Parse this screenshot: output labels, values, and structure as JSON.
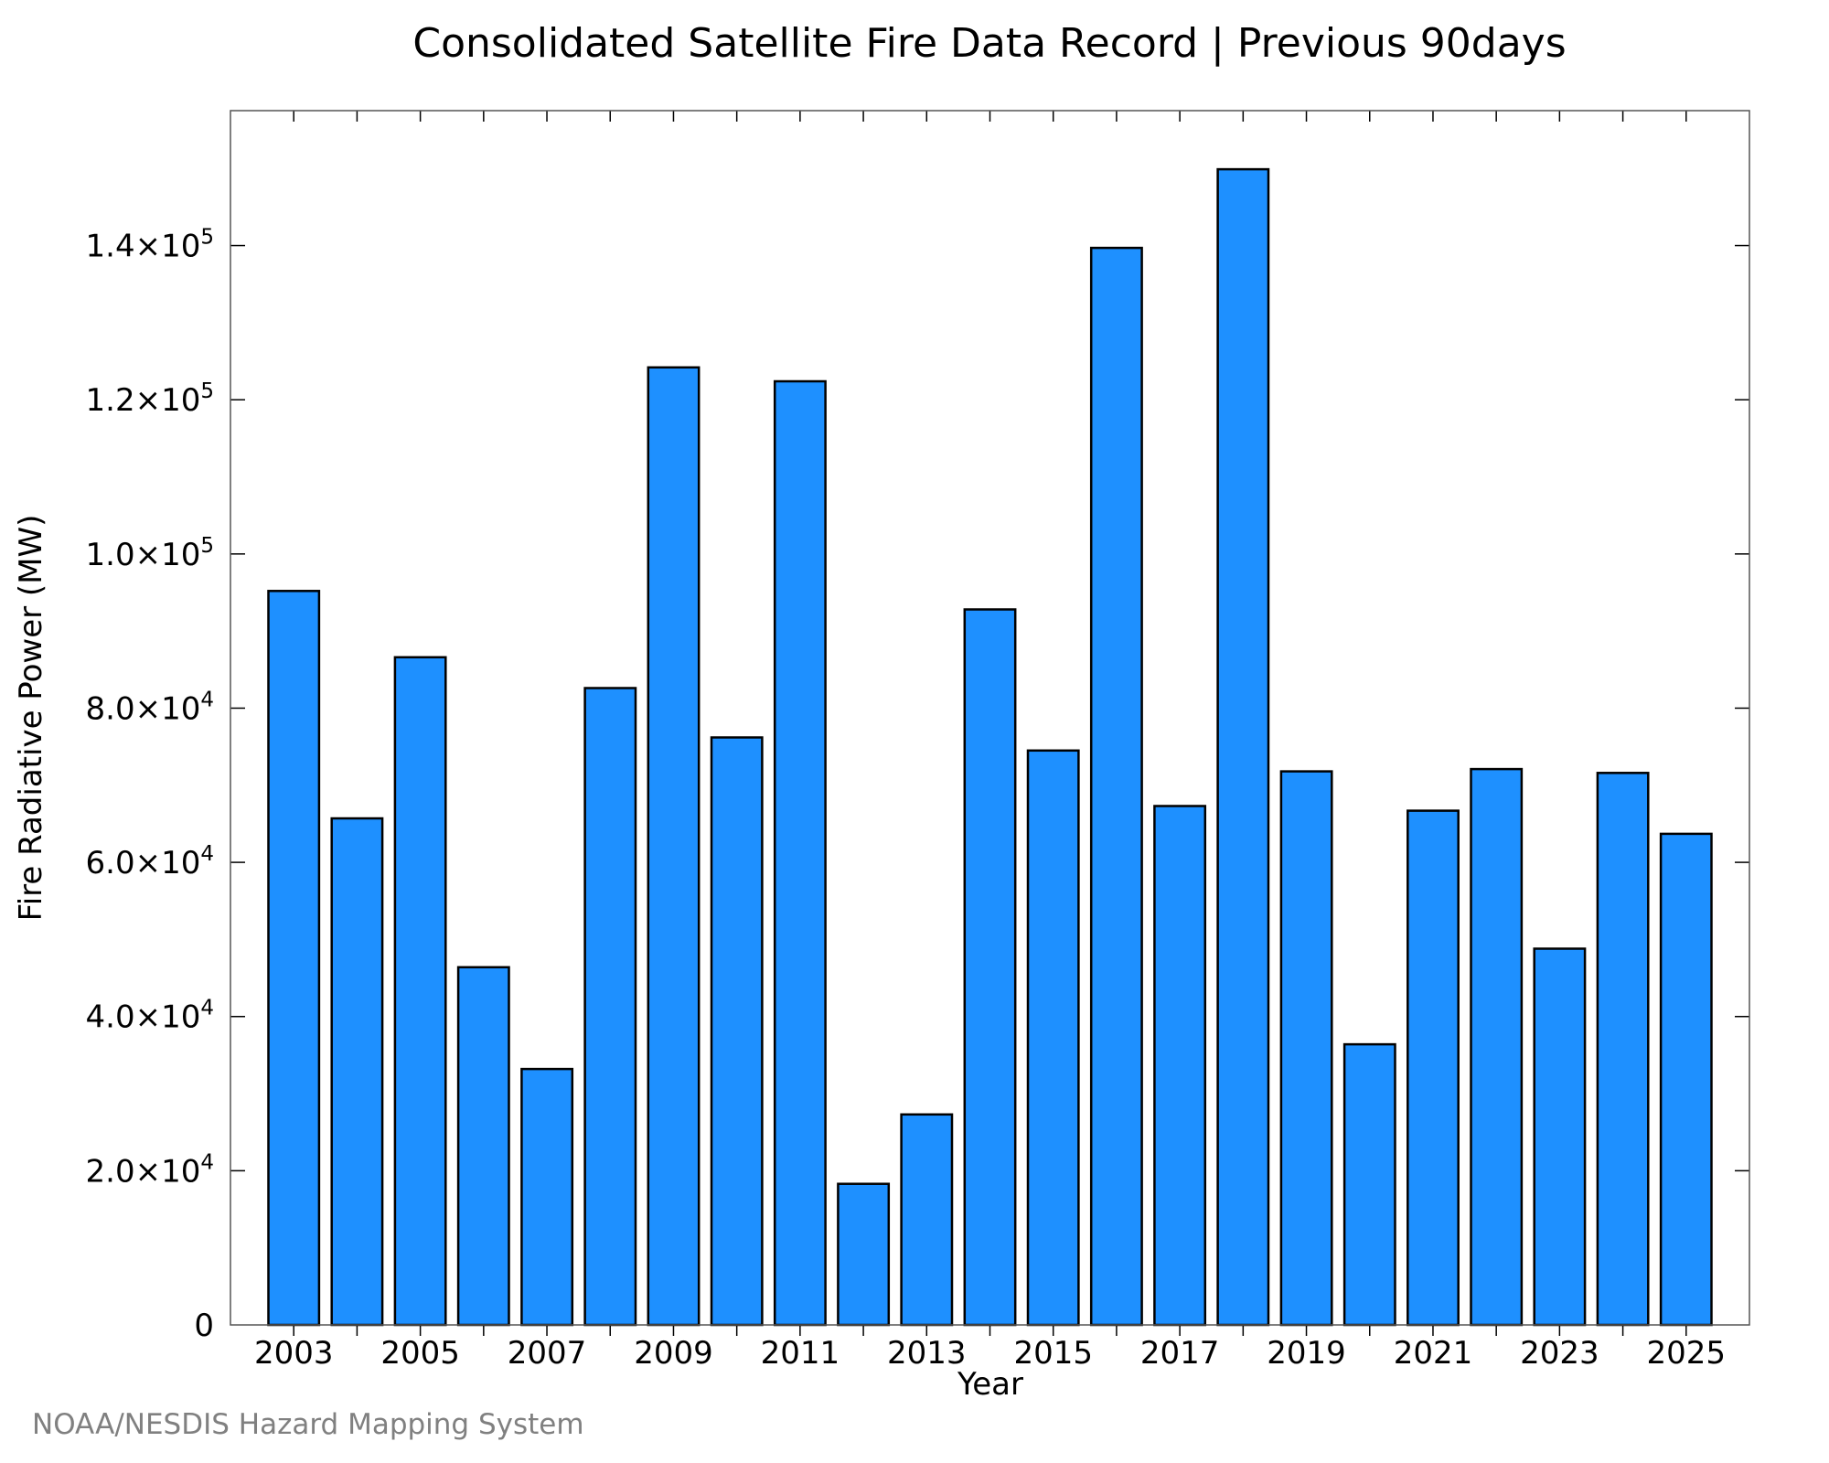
{
  "chart_data": {
    "type": "bar",
    "title": "Consolidated Satellite Fire Data Record | Previous 90days",
    "xlabel": "Year",
    "ylabel": "Fire Radiative Power (MW)",
    "source": "NOAA/NESDIS Hazard Mapping System",
    "colors": {
      "bar": "#1E90FF",
      "outline": "#000000"
    },
    "categories": [
      "2003",
      "2004",
      "2005",
      "2006",
      "2007",
      "2008",
      "2009",
      "2010",
      "2011",
      "2012",
      "2013",
      "2014",
      "2015",
      "2016",
      "2017",
      "2018",
      "2019",
      "2020",
      "2021",
      "2022",
      "2023",
      "2024",
      "2025"
    ],
    "values": [
      95200,
      65700,
      86600,
      46400,
      33200,
      82600,
      124200,
      76200,
      122400,
      18300,
      27300,
      92800,
      74500,
      139700,
      67300,
      149900,
      71800,
      36400,
      66700,
      72100,
      48800,
      71600,
      63700
    ],
    "x_tick_labels": [
      "2003",
      "2005",
      "2007",
      "2009",
      "2011",
      "2013",
      "2015",
      "2017",
      "2019",
      "2021",
      "2023",
      "2025"
    ],
    "y_ticks": [
      {
        "value": 0,
        "mant": "0",
        "exp": ""
      },
      {
        "value": 20000,
        "mant": "2.0×10",
        "exp": "4"
      },
      {
        "value": 40000,
        "mant": "4.0×10",
        "exp": "4"
      },
      {
        "value": 60000,
        "mant": "6.0×10",
        "exp": "4"
      },
      {
        "value": 80000,
        "mant": "8.0×10",
        "exp": "4"
      },
      {
        "value": 100000,
        "mant": "1.0×10",
        "exp": "5"
      },
      {
        "value": 120000,
        "mant": "1.2×10",
        "exp": "5"
      },
      {
        "value": 140000,
        "mant": "1.4×10",
        "exp": "5"
      }
    ],
    "ylim": [
      0,
      157500
    ],
    "x_range": [
      2002.0,
      2026.0
    ],
    "grid": false,
    "legend": "none"
  }
}
